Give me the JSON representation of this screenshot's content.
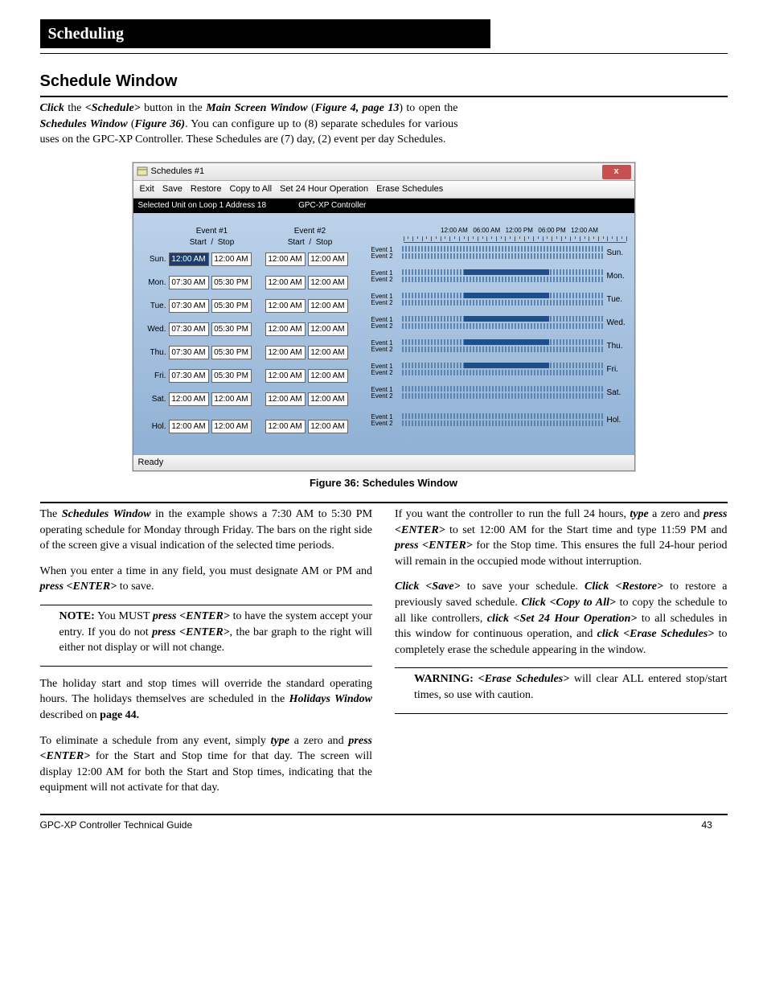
{
  "header": {
    "title": "Scheduling"
  },
  "section": {
    "title": "Schedule Window"
  },
  "intro": {
    "p1a": "Click",
    "p1b": " the ",
    "p1c": "<Schedule>",
    "p1d": " button in the ",
    "p1e": "Main Screen Window",
    "p2a": "(",
    "p2b": "Figure 4, page 13",
    "p2c": ") to open the ",
    "p2d": "Schedules Window",
    "p3a": "(",
    "p3b": "Figure 36)",
    "p3c": ". You can configure up to (8) separate schedules for various uses on the GPC-XP Controller.  These Schedules are (7) day, (2) event per day Schedules."
  },
  "window": {
    "title": "Schedules #1",
    "close": "x",
    "menu": [
      "Exit",
      "Save",
      "Restore",
      "Copy to All",
      "Set 24 Hour Operation",
      "Erase Schedules"
    ],
    "addr_left": "Selected Unit on Loop 1 Address 18",
    "addr_right": "GPC-XP Controller",
    "ev1": "Event #1",
    "ev2": "Event #2",
    "start": "Start",
    "stop": "Stop",
    "slash": "/",
    "days": [
      "Sun.",
      "Mon.",
      "Tue.",
      "Wed.",
      "Thu.",
      "Fri.",
      "Sat.",
      "Hol."
    ],
    "rdays": [
      "Sun.",
      "Mon.",
      "Tue.",
      "Wed.",
      "Thu.",
      "Fri.",
      "Sat.",
      "Hol."
    ],
    "tl_labels": [
      "12:00 AM",
      "06:00 AM",
      "12:00 PM",
      "06:00 PM",
      "12:00 AM"
    ],
    "evlabel1": "Event 1",
    "evlabel2": "Event 2",
    "rows": [
      {
        "e1s": "12:00 AM",
        "e1p": "12:00 AM",
        "e2s": "12:00 AM",
        "e2p": "12:00 AM",
        "sel": true,
        "occ": false
      },
      {
        "e1s": "07:30 AM",
        "e1p": "05:30 PM",
        "e2s": "12:00 AM",
        "e2p": "12:00 AM",
        "sel": false,
        "occ": true
      },
      {
        "e1s": "07:30 AM",
        "e1p": "05:30 PM",
        "e2s": "12:00 AM",
        "e2p": "12:00 AM",
        "sel": false,
        "occ": true
      },
      {
        "e1s": "07:30 AM",
        "e1p": "05:30 PM",
        "e2s": "12:00 AM",
        "e2p": "12:00 AM",
        "sel": false,
        "occ": true
      },
      {
        "e1s": "07:30 AM",
        "e1p": "05:30 PM",
        "e2s": "12:00 AM",
        "e2p": "12:00 AM",
        "sel": false,
        "occ": true
      },
      {
        "e1s": "07:30 AM",
        "e1p": "05:30 PM",
        "e2s": "12:00 AM",
        "e2p": "12:00 AM",
        "sel": false,
        "occ": true
      },
      {
        "e1s": "12:00 AM",
        "e1p": "12:00 AM",
        "e2s": "12:00 AM",
        "e2p": "12:00 AM",
        "sel": false,
        "occ": false
      },
      {
        "e1s": "12:00 AM",
        "e1p": "12:00 AM",
        "e2s": "12:00 AM",
        "e2p": "12:00 AM",
        "sel": false,
        "occ": false
      }
    ],
    "occ_start_pct": 31,
    "occ_end_pct": 73,
    "status": "Ready"
  },
  "caption": "Figure 36: Schedules Window",
  "body": {
    "l1a": "The ",
    "l1b": "Schedules Window",
    "l1c": " in the example shows a 7:30 AM to 5:30 PM operating schedule for Monday through Friday. The bars on the right side of the screen give a visual indication of the selected time periods.",
    "l2a": "When you enter a time in any field, you must designate AM or PM and ",
    "l2b": "press <ENTER>",
    "l2c": " to save.",
    "note1a": "NOTE:",
    "note1b": " You MUST ",
    "note1c": "press <ENTER>",
    "note1d": " to have the system accept your entry. If you do not ",
    "note1e": "press <ENTER>",
    "note1f": ", the bar graph to the right will either not display or will not change.",
    "l3a": "The holiday start and stop times will override the standard operating hours. The holidays themselves are scheduled in the ",
    "l3b": "Holidays Window",
    "l3c": " described on ",
    "l3d": "page 44.",
    "l4a": "To eliminate a schedule from any event, simply ",
    "l4b": "type",
    "l4c": " a zero and ",
    "l4d": "press <ENTER>",
    "l4e": " for the Start and Stop time for that day. The screen will display 12:00 AM for both the Start and Stop times, indicating that the equipment will not activate for that day.",
    "r1a": "If you want the controller to run the full 24 hours, ",
    "r1b": "type",
    "r1c": " a zero and ",
    "r1d": "press <ENTER>",
    "r1e": " to set 12:00 AM for the Start time and type 11:59 PM and ",
    "r1f": "press <ENTER>",
    "r1g": " for the Stop time. This ensures the full 24-hour period will remain in the occupied mode without interruption.",
    "r2a": "Click <Save>",
    "r2b": " to save your schedule. ",
    "r2c": "Click <Restore>",
    "r2d": " to restore a previously saved schedule. ",
    "r2e": "Click <Copy to All>",
    "r2f": " to copy the schedule to all like controllers, ",
    "r2g": "click <Set 24 Hour Operation>",
    "r2h": " to all schedules in this window for continuous operation, and ",
    "r2i": "click <Erase Schedules>",
    "r2j": " to completely erase the schedule appearing in the window.",
    "warn1a": "WARNING:",
    "warn1b": " <Erase Schedules>",
    "warn1c": " will clear ALL entered stop/start times, so use with caution."
  },
  "footer": {
    "left": "GPC-XP Controller Technical Guide",
    "page": "43"
  }
}
